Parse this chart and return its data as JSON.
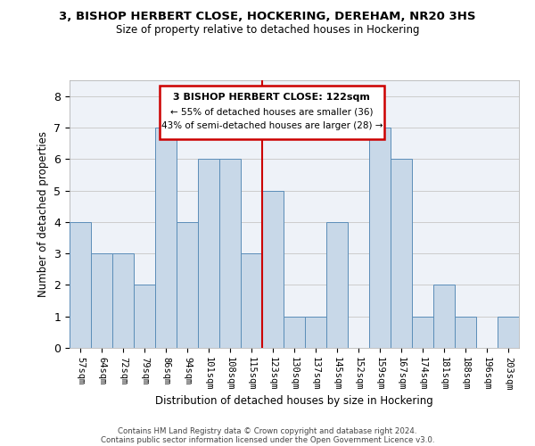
{
  "title": "3, BISHOP HERBERT CLOSE, HOCKERING, DEREHAM, NR20 3HS",
  "subtitle": "Size of property relative to detached houses in Hockering",
  "xlabel": "Distribution of detached houses by size in Hockering",
  "ylabel": "Number of detached properties",
  "bin_labels": [
    "57sqm",
    "64sqm",
    "72sqm",
    "79sqm",
    "86sqm",
    "94sqm",
    "101sqm",
    "108sqm",
    "115sqm",
    "123sqm",
    "130sqm",
    "137sqm",
    "145sqm",
    "152sqm",
    "159sqm",
    "167sqm",
    "174sqm",
    "181sqm",
    "188sqm",
    "196sqm",
    "203sqm"
  ],
  "bar_heights": [
    4,
    3,
    3,
    2,
    7,
    4,
    6,
    6,
    3,
    5,
    1,
    1,
    4,
    0,
    7,
    6,
    1,
    2,
    1,
    0,
    1
  ],
  "bar_color": "#c8d8e8",
  "bar_edge_color": "#5b8db8",
  "bar_edge_width": 0.7,
  "reference_line_color": "#cc0000",
  "annotation_title": "3 BISHOP HERBERT CLOSE: 122sqm",
  "annotation_line1": "← 55% of detached houses are smaller (36)",
  "annotation_line2": "43% of semi-detached houses are larger (28) →",
  "annotation_box_edge_color": "#cc0000",
  "ylim": [
    0,
    8.5
  ],
  "yticks": [
    0,
    1,
    2,
    3,
    4,
    5,
    6,
    7,
    8
  ],
  "grid_color": "#cccccc",
  "bg_color": "#eef2f8",
  "footnote1": "Contains HM Land Registry data © Crown copyright and database right 2024.",
  "footnote2": "Contains public sector information licensed under the Open Government Licence v3.0."
}
